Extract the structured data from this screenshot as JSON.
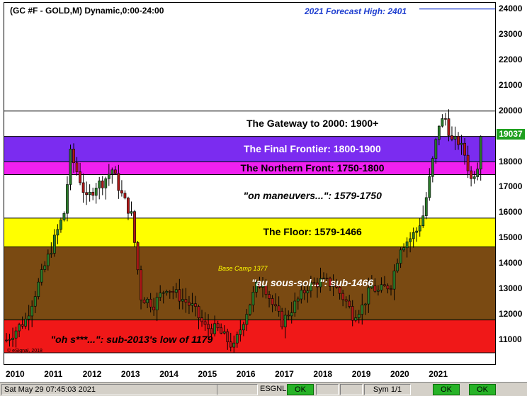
{
  "chart_title": "(GC #F - GOLD,M) Dynamic,0:00-24:00",
  "forecast_label": "2021 Forecast High:  2401",
  "current_price": "19037",
  "watermark": "© eSignal, 2018",
  "colors": {
    "frame": "#000000",
    "up_candle": "#2a7a2a",
    "down_candle": "#b01818",
    "forecast": "#1f3fd0"
  },
  "status_bar": {
    "timestamp": "Sat May 29 07:45:03 2021",
    "esignal_label": "ESGNL:",
    "esignal_status": "OK",
    "sym_label": "Sym 1/1",
    "status_ok_2": "OK",
    "status_ok_3": "OK"
  },
  "chart_data": {
    "type": "candlestick",
    "y_axis": {
      "min": 10500,
      "max": 24100,
      "position": "right",
      "ticks": [
        "11000",
        "12000",
        "13000",
        "14000",
        "15000",
        "16000",
        "17000",
        "18000",
        "19000",
        "20000",
        "21000",
        "22000",
        "23000",
        "24000"
      ]
    },
    "x_axis": {
      "ticks": [
        "2010",
        "2011",
        "2012",
        "2013",
        "2014",
        "2015",
        "2016",
        "2017",
        "2018",
        "2019",
        "2020",
        "2021"
      ]
    },
    "forecast_high": 24010,
    "bands": [
      {
        "label": "The Gateway to 2000:  1900+",
        "low": 19000,
        "high": 20000,
        "color": "#ffffff",
        "text_color": "#000000",
        "italic": false
      },
      {
        "label": "The Final Frontier:  1800-1900",
        "low": 18000,
        "high": 19000,
        "color": "#7b2cf0",
        "text_color": "#ffffff",
        "italic": false
      },
      {
        "label": "The Northern Front:  1750-1800",
        "low": 17500,
        "high": 18000,
        "color": "#f020f0",
        "text_color": "#000000",
        "italic": false
      },
      {
        "label": "\"on maneuvers...\":  1579-1750",
        "low": 15790,
        "high": 17500,
        "color": "#ffffff",
        "text_color": "#000000",
        "italic": true
      },
      {
        "label": "The Floor:  1579-1466",
        "low": 14660,
        "high": 15790,
        "color": "#ffff00",
        "text_color": "#000000",
        "italic": false
      },
      {
        "label": "\"au sous-sol...\":  sub-1466",
        "low": 11790,
        "high": 14660,
        "color": "#7a4a12",
        "text_color": "#ffffff",
        "italic": true
      },
      {
        "label": "\"oh s***...\":  sub-2013's low of 1179",
        "low": 10500,
        "high": 11790,
        "color": "#f01818",
        "text_color": "#000000",
        "italic": true
      }
    ],
    "annotations": [
      {
        "text": "Base Camp 1377",
        "value": 13770,
        "color": "#ffff00"
      }
    ],
    "anchors": [
      {
        "t": 0,
        "v": 11000
      },
      {
        "t": 6,
        "v": 11800
      },
      {
        "t": 12,
        "v": 13900
      },
      {
        "t": 18,
        "v": 16000
      },
      {
        "t": 20,
        "v": 18300
      },
      {
        "t": 23,
        "v": 17300
      },
      {
        "t": 25,
        "v": 16500
      },
      {
        "t": 28,
        "v": 17100
      },
      {
        "t": 30,
        "v": 17200
      },
      {
        "t": 33,
        "v": 17700
      },
      {
        "t": 36,
        "v": 16700
      },
      {
        "t": 39,
        "v": 15900
      },
      {
        "t": 42,
        "v": 12700
      },
      {
        "t": 46,
        "v": 12400
      },
      {
        "t": 50,
        "v": 13100
      },
      {
        "t": 54,
        "v": 12700
      },
      {
        "t": 58,
        "v": 12300
      },
      {
        "t": 62,
        "v": 11500
      },
      {
        "t": 66,
        "v": 11400
      },
      {
        "t": 71,
        "v": 10700
      },
      {
        "t": 74,
        "v": 11800
      },
      {
        "t": 78,
        "v": 13100
      },
      {
        "t": 80,
        "v": 13300
      },
      {
        "t": 83,
        "v": 12400
      },
      {
        "t": 86,
        "v": 11700
      },
      {
        "t": 90,
        "v": 12400
      },
      {
        "t": 94,
        "v": 13100
      },
      {
        "t": 98,
        "v": 13300
      },
      {
        "t": 102,
        "v": 13200
      },
      {
        "t": 106,
        "v": 12500
      },
      {
        "t": 108,
        "v": 12000
      },
      {
        "t": 111,
        "v": 12300
      },
      {
        "t": 114,
        "v": 13100
      },
      {
        "t": 116,
        "v": 12900
      },
      {
        "t": 120,
        "v": 13200
      },
      {
        "t": 123,
        "v": 14700
      },
      {
        "t": 126,
        "v": 15000
      },
      {
        "t": 128,
        "v": 15300
      },
      {
        "t": 130,
        "v": 15900
      },
      {
        "t": 132,
        "v": 17300
      },
      {
        "t": 135,
        "v": 19500
      },
      {
        "t": 137,
        "v": 19700
      },
      {
        "t": 139,
        "v": 18800
      },
      {
        "t": 141,
        "v": 18800
      },
      {
        "t": 143,
        "v": 18300
      },
      {
        "t": 145,
        "v": 17300
      },
      {
        "t": 147,
        "v": 17900
      },
      {
        "t": 148,
        "v": 19000
      }
    ]
  }
}
